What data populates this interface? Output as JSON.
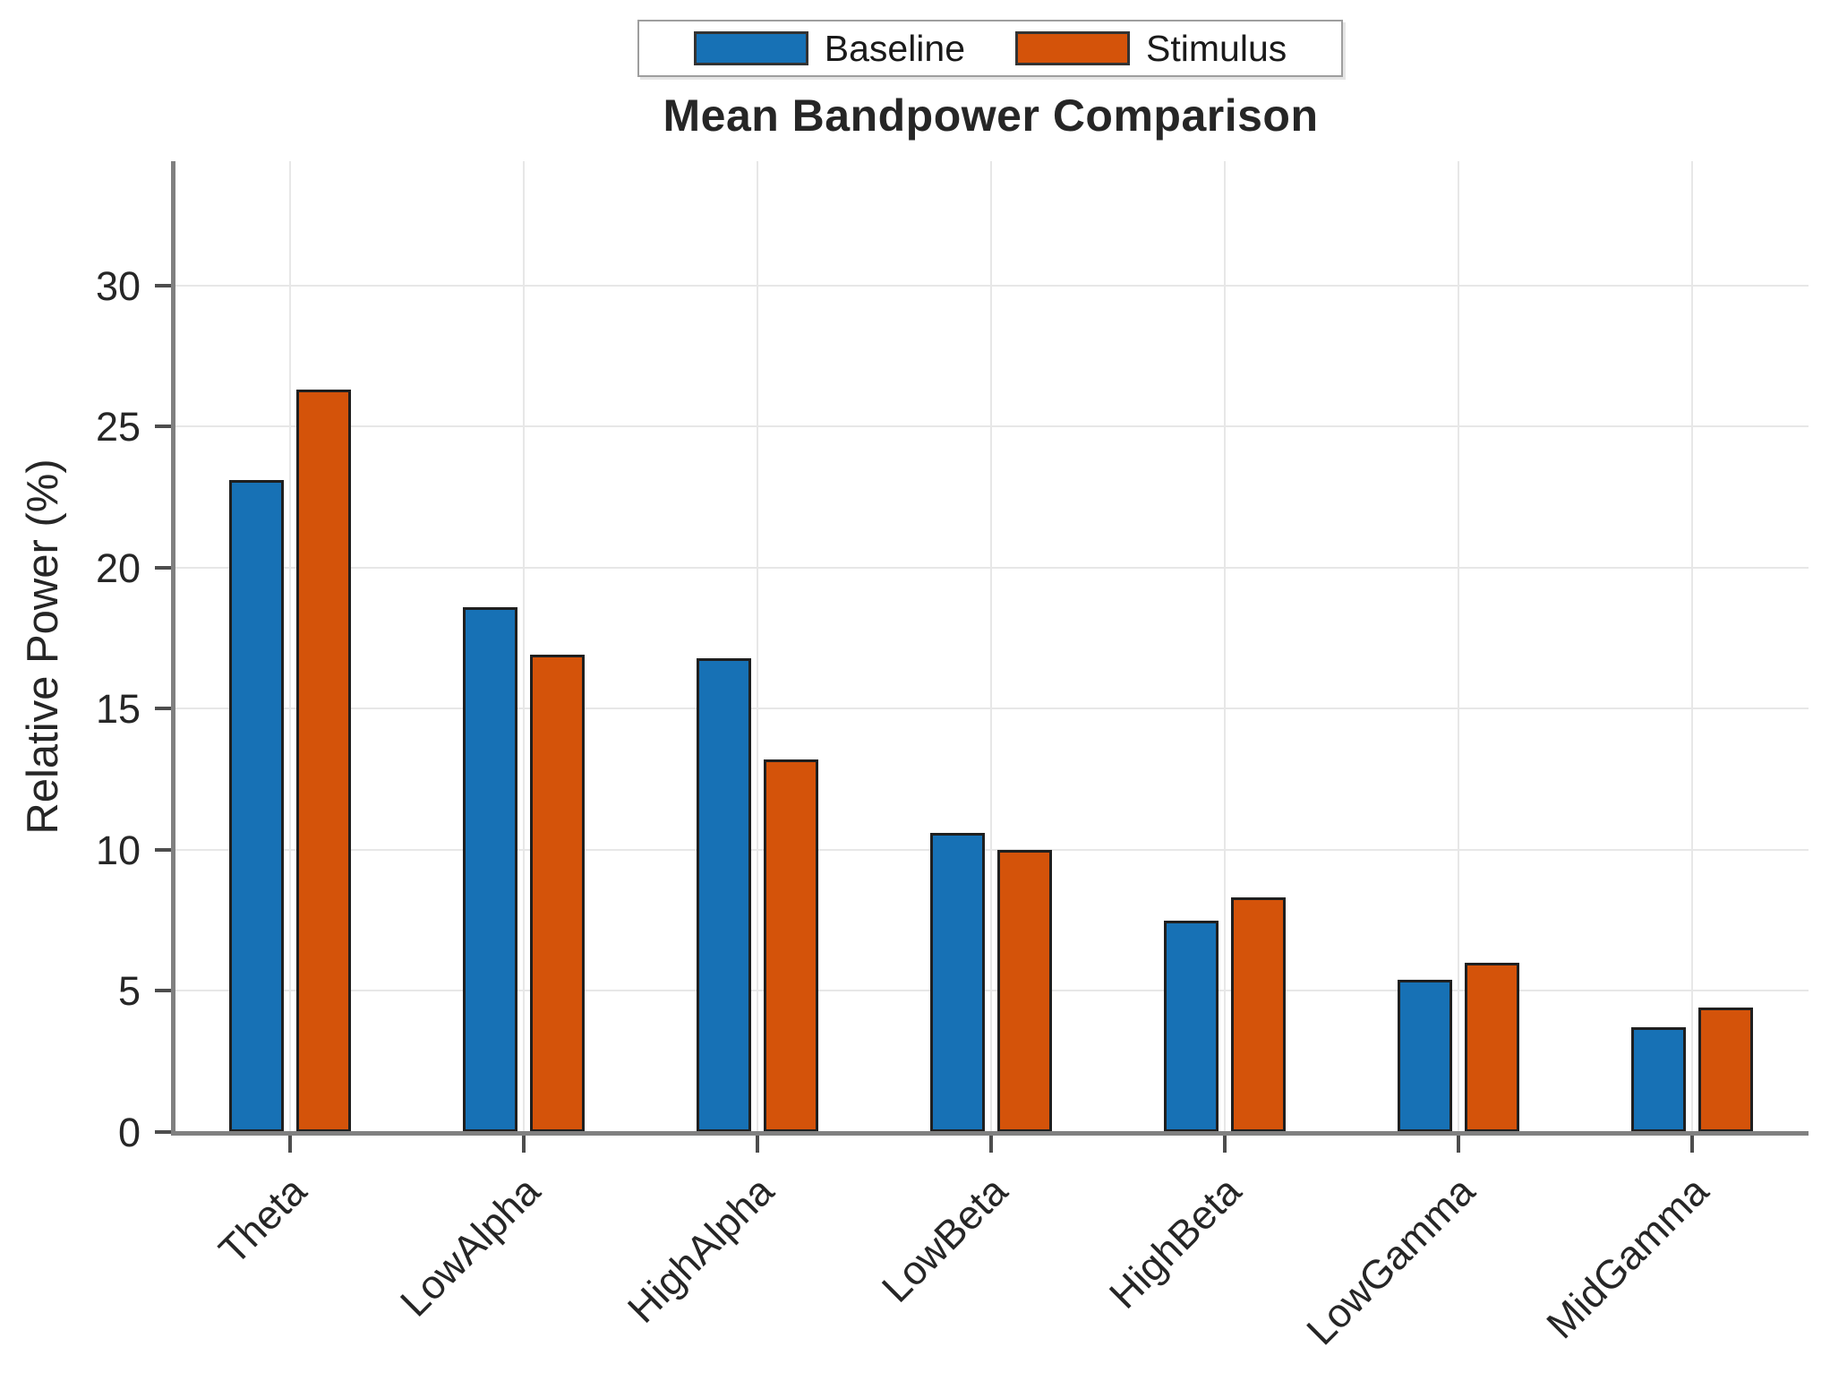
{
  "chart_data": {
    "type": "bar",
    "title": "Mean Bandpower Comparison",
    "xlabel": "",
    "ylabel": "Relative Power (%)",
    "categories": [
      "Theta",
      "LowAlpha",
      "HighAlpha",
      "LowBeta",
      "HighBeta",
      "LowGamma",
      "MidGamma"
    ],
    "series": [
      {
        "name": "Baseline",
        "color": "#1771b5",
        "values": [
          23.1,
          18.6,
          16.8,
          10.6,
          7.5,
          5.4,
          3.7
        ]
      },
      {
        "name": "Stimulus",
        "color": "#d4530a",
        "values": [
          26.3,
          16.9,
          13.2,
          10.0,
          8.3,
          6.0,
          4.4
        ]
      }
    ],
    "yticks": [
      0,
      5,
      10,
      15,
      20,
      25,
      30
    ],
    "ylim": [
      0,
      34.4
    ],
    "grid": true,
    "legend_position": "top-center-outside",
    "colors": {
      "grid": "#e7e7e7",
      "spine": "#808080",
      "tick": "#4d4d4d",
      "text": "#262626",
      "bar_edge": "#1f1f1f"
    }
  }
}
